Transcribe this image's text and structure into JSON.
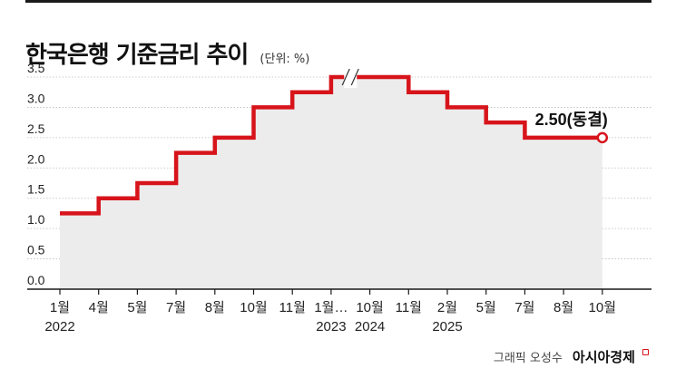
{
  "title": "한국은행 기준금리 추이",
  "unit": "(단위: %)",
  "credit": "그래픽 오성수",
  "brand": "아시아경제",
  "colors": {
    "line": "#d7141b",
    "area": "#ececec",
    "grid": "#bdbdbd",
    "axis": "#1a1a1a",
    "text": "#222222"
  },
  "chart_data": {
    "type": "line",
    "step": true,
    "ylim": [
      0,
      3.5
    ],
    "yticks": [
      "0.0",
      "0.5",
      "1.0",
      "1.5",
      "2.0",
      "2.5",
      "3.0",
      "3.5"
    ],
    "x_labels": [
      "1월",
      "4월",
      "5월",
      "7월",
      "8월",
      "10월",
      "11월",
      "1월…",
      "10월",
      "11월",
      "2월",
      "5월",
      "7월",
      "8월",
      "10월"
    ],
    "year_labels": [
      {
        "after_index": 0,
        "text": "2022"
      },
      {
        "after_index": 7,
        "text": "2023"
      },
      {
        "after_index": 8,
        "text": "2024"
      },
      {
        "after_index": 10,
        "text": "2025"
      }
    ],
    "axis_break_between": [
      7,
      8
    ],
    "series": [
      {
        "values": [
          1.25,
          1.5,
          1.75,
          2.25,
          2.5,
          3.0,
          3.25,
          3.5,
          3.5,
          3.25,
          3.0,
          2.75,
          2.5,
          2.5,
          2.5,
          2.5
        ]
      }
    ],
    "callout": {
      "text": "2.50(동결)",
      "value": 2.5
    },
    "grid": true
  }
}
